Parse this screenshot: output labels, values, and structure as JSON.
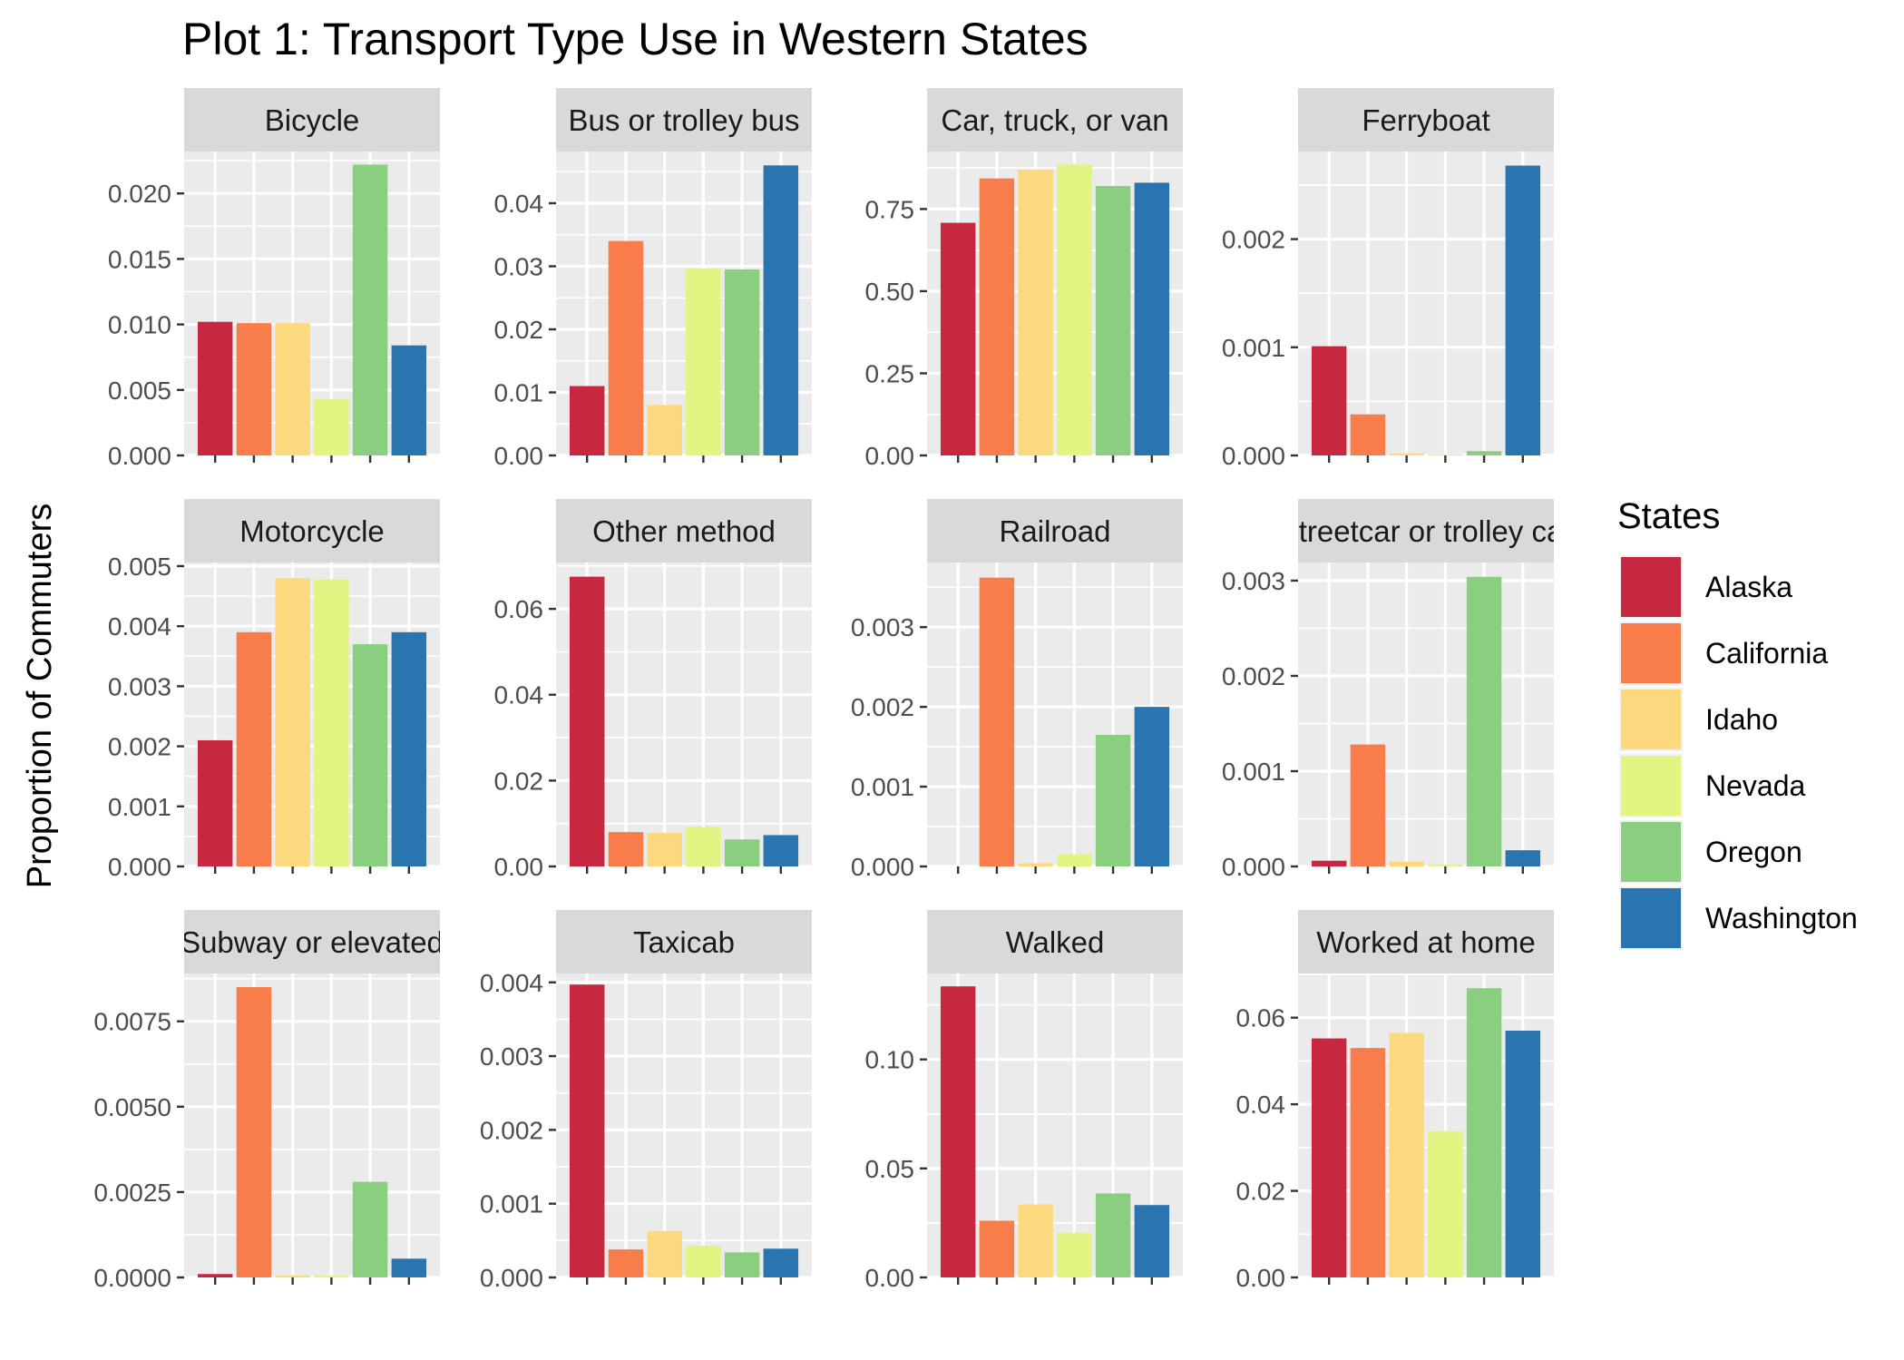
{
  "chart_data": {
    "type": "bar",
    "title": "Plot 1: Transport Type Use in Western States",
    "ylabel": "Proportion of Commuters",
    "xlabel": "",
    "legend": {
      "title": "States",
      "position": "right",
      "entries": [
        "Alaska",
        "California",
        "Idaho",
        "Nevada",
        "Oregon",
        "Washington"
      ]
    },
    "colors": {
      "Alaska": "#c8283f",
      "California": "#f87d4a",
      "Idaho": "#fcd97e",
      "Nevada": "#e2f482",
      "Oregon": "#89cf7f",
      "Washington": "#2a75b0",
      "panel_bg": "#ebebeb",
      "strip_bg": "#d9d9d9",
      "grid": "#ffffff"
    },
    "categories": [
      "Alaska",
      "California",
      "Idaho",
      "Nevada",
      "Oregon",
      "Washington"
    ],
    "panels": [
      {
        "label": "Bicycle",
        "ticks": [
          "0.000",
          "0.005",
          "0.010",
          "0.015",
          "0.020"
        ],
        "tick_values": [
          0,
          0.005,
          0.01,
          0.015,
          0.02
        ],
        "ylim": [
          0,
          0.0232
        ],
        "values": [
          0.0102,
          0.0101,
          0.0101,
          0.0043,
          0.0222,
          0.0084
        ]
      },
      {
        "label": "Bus or trolley bus",
        "ticks": [
          "0.00",
          "0.01",
          "0.02",
          "0.03",
          "0.04"
        ],
        "tick_values": [
          0,
          0.01,
          0.02,
          0.03,
          0.04
        ],
        "ylim": [
          0,
          0.0482
        ],
        "values": [
          0.011,
          0.034,
          0.008,
          0.0296,
          0.0295,
          0.046
        ]
      },
      {
        "label": "Car, truck, or van",
        "ticks": [
          "0.00",
          "0.25",
          "0.50",
          "0.75"
        ],
        "tick_values": [
          0,
          0.25,
          0.5,
          0.75
        ],
        "ylim": [
          0,
          0.925
        ],
        "values": [
          0.708,
          0.843,
          0.87,
          0.887,
          0.82,
          0.83
        ]
      },
      {
        "label": "Ferryboat",
        "ticks": [
          "0.000",
          "0.001",
          "0.002"
        ],
        "tick_values": [
          0,
          0.001,
          0.002
        ],
        "ylim": [
          0,
          0.00281
        ],
        "values": [
          0.00101,
          0.00038,
          2e-05,
          1e-05,
          4e-05,
          0.00268
        ]
      },
      {
        "label": "Motorcycle",
        "ticks": [
          "0.000",
          "0.001",
          "0.002",
          "0.003",
          "0.004",
          "0.005"
        ],
        "tick_values": [
          0,
          0.001,
          0.002,
          0.003,
          0.004,
          0.005
        ],
        "ylim": [
          0,
          0.00506
        ],
        "values": [
          0.0021,
          0.0039,
          0.0048,
          0.00478,
          0.0037,
          0.0039
        ]
      },
      {
        "label": "Other method",
        "ticks": [
          "0.00",
          "0.02",
          "0.04",
          "0.06"
        ],
        "tick_values": [
          0,
          0.02,
          0.04,
          0.06
        ],
        "ylim": [
          0,
          0.0708
        ],
        "values": [
          0.0675,
          0.008,
          0.0078,
          0.0092,
          0.0063,
          0.0073
        ]
      },
      {
        "label": "Railroad",
        "ticks": [
          "0.000",
          "0.001",
          "0.002",
          "0.003"
        ],
        "tick_values": [
          0,
          0.001,
          0.002,
          0.003
        ],
        "ylim": [
          0,
          0.00381
        ],
        "values": [
          0,
          0.00362,
          4e-05,
          0.00015,
          0.00165,
          0.002
        ]
      },
      {
        "label": "Streetcar or trolley car",
        "ticks": [
          "0.000",
          "0.001",
          "0.002",
          "0.003"
        ],
        "tick_values": [
          0,
          0.001,
          0.002,
          0.003
        ],
        "ylim": [
          0,
          0.00319
        ],
        "values": [
          6e-05,
          0.00128,
          5e-05,
          2e-05,
          0.00304,
          0.00017
        ]
      },
      {
        "label": "Subway or elevated",
        "ticks": [
          "0.0000",
          "0.0025",
          "0.0050",
          "0.0075"
        ],
        "tick_values": [
          0,
          0.0025,
          0.005,
          0.0075
        ],
        "ylim": [
          0,
          0.0089
        ],
        "values": [
          0.0001,
          0.0085,
          6e-05,
          5e-05,
          0.0028,
          0.00055
        ]
      },
      {
        "label": "Taxicab",
        "ticks": [
          "0.000",
          "0.001",
          "0.002",
          "0.003",
          "0.004"
        ],
        "tick_values": [
          0,
          0.001,
          0.002,
          0.003,
          0.004
        ],
        "ylim": [
          0,
          0.00412
        ],
        "values": [
          0.00397,
          0.00038,
          0.00063,
          0.00043,
          0.00034,
          0.00039
        ]
      },
      {
        "label": "Walked",
        "ticks": [
          "0.00",
          "0.05",
          "0.10"
        ],
        "tick_values": [
          0,
          0.05,
          0.1
        ],
        "ylim": [
          0,
          0.1394
        ],
        "values": [
          0.1335,
          0.026,
          0.0335,
          0.0205,
          0.0385,
          0.0332
        ]
      },
      {
        "label": "Worked at home",
        "ticks": [
          "0.00",
          "0.02",
          "0.04",
          "0.06"
        ],
        "tick_values": [
          0,
          0.02,
          0.04,
          0.06
        ],
        "ylim": [
          0,
          0.0702
        ],
        "values": [
          0.0552,
          0.053,
          0.0565,
          0.0338,
          0.0668,
          0.057
        ]
      }
    ]
  }
}
